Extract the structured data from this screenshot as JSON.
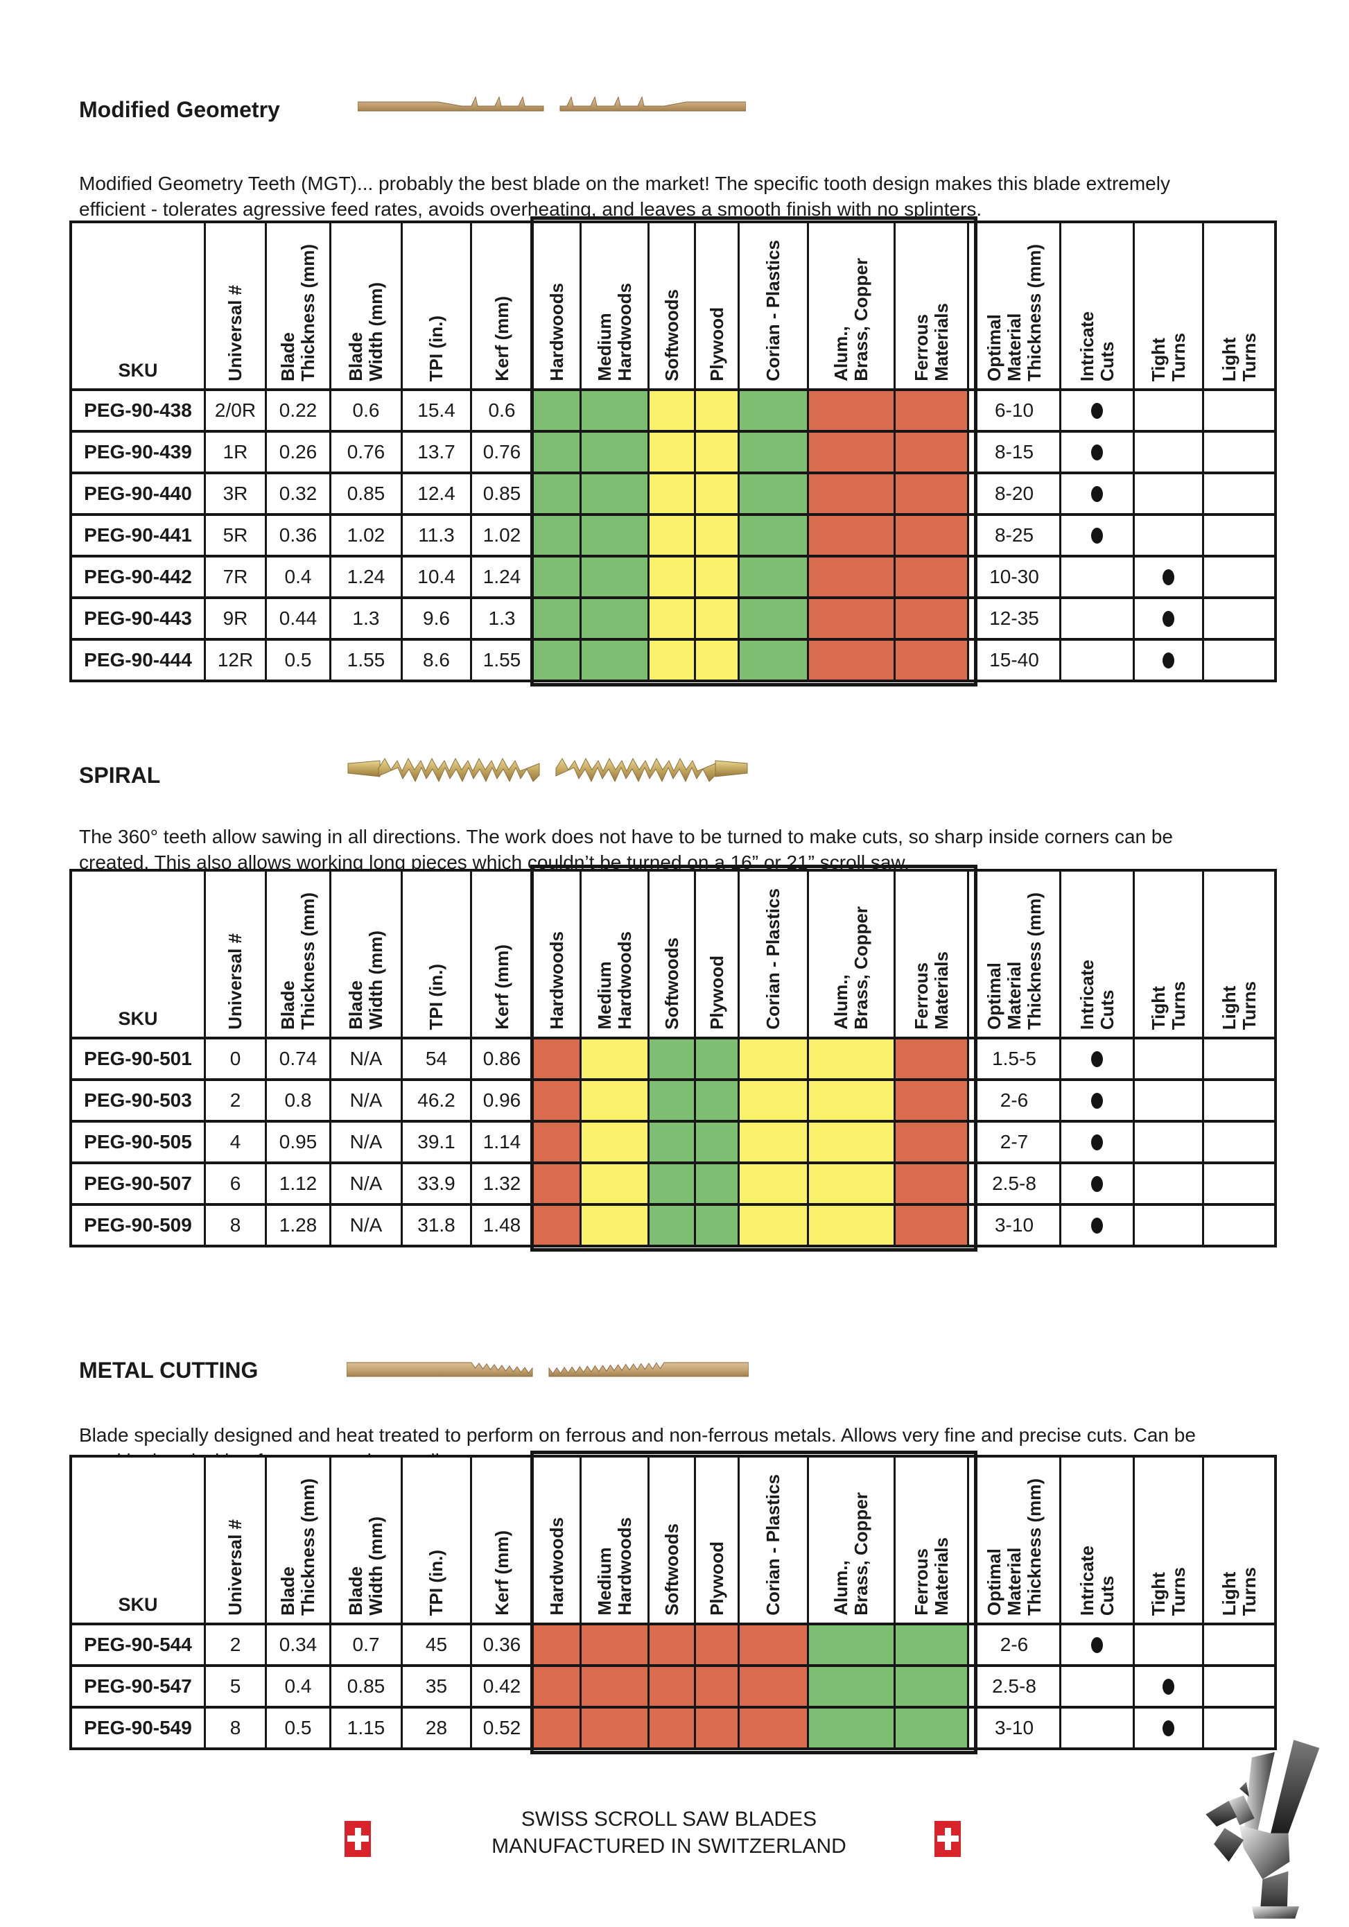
{
  "colors": {
    "suitable": "#7dbe73",
    "moderate": "#faf16a",
    "unsuitable": "#d96b4e",
    "border": "#161616",
    "flag_red": "#d8232a"
  },
  "table_columns": [
    {
      "key": "sku",
      "label": "SKU",
      "rotated": false
    },
    {
      "key": "universal",
      "label": "Universal #",
      "rotated": true
    },
    {
      "key": "thickness",
      "label": "Blade\nThickness (mm)",
      "rotated": true
    },
    {
      "key": "width",
      "label": "Blade\nWidth (mm)",
      "rotated": true
    },
    {
      "key": "tpi",
      "label": "TPI (in.)",
      "rotated": true
    },
    {
      "key": "kerf",
      "label": "Kerf (mm)",
      "rotated": true
    },
    {
      "key": "hardwoods",
      "label": "Hardwoods",
      "rotated": true,
      "material": true
    },
    {
      "key": "medium_hardwoods",
      "label": "Medium\nHardwoods",
      "rotated": true,
      "material": true
    },
    {
      "key": "softwoods",
      "label": "Softwoods",
      "rotated": true,
      "material": true
    },
    {
      "key": "plywood",
      "label": "Plywood",
      "rotated": true,
      "material": true
    },
    {
      "key": "corian_plastics",
      "label": "Corian - Plastics",
      "rotated": true,
      "material": true
    },
    {
      "key": "alum_brass_copper",
      "label": "Alum.,\nBrass, Copper",
      "rotated": true,
      "material": true
    },
    {
      "key": "ferrous",
      "label": "Ferrous\nMaterials",
      "rotated": true,
      "material": true
    },
    {
      "key": "optimal",
      "label": "Optimal\nMaterial\nThickness (mm)",
      "rotated": true
    },
    {
      "key": "intricate",
      "label": "Intricate\nCuts",
      "rotated": true,
      "dot": true
    },
    {
      "key": "tight",
      "label": "Tight\nTurns",
      "rotated": true,
      "dot": true
    },
    {
      "key": "light",
      "label": "Light\nTurns",
      "rotated": true,
      "dot": true
    }
  ],
  "sections": [
    {
      "title": "Modified Geometry",
      "blade_image": "modified-geometry-blade",
      "description_lines": [
        "Modified Geometry Teeth (MGT)... probably the best blade on the market! The specific tooth design makes this blade extremely",
        "efficient - tolerates agressive feed rates, avoids overheating, and leaves a smooth finish with no splinters."
      ],
      "materials": {
        "hardwoods": "suitable",
        "medium_hardwoods": "suitable",
        "softwoods": "moderate",
        "plywood": "moderate",
        "corian_plastics": "suitable",
        "alum_brass_copper": "unsuitable",
        "ferrous": "unsuitable"
      },
      "rows": [
        {
          "sku": "PEG-90-438",
          "universal": "2/0R",
          "thickness": "0.22",
          "width": "0.6",
          "tpi": "15.4",
          "kerf": "0.6",
          "optimal": "6-10",
          "dot": "intricate"
        },
        {
          "sku": "PEG-90-439",
          "universal": "1R",
          "thickness": "0.26",
          "width": "0.76",
          "tpi": "13.7",
          "kerf": "0.76",
          "optimal": "8-15",
          "dot": "intricate"
        },
        {
          "sku": "PEG-90-440",
          "universal": "3R",
          "thickness": "0.32",
          "width": "0.85",
          "tpi": "12.4",
          "kerf": "0.85",
          "optimal": "8-20",
          "dot": "intricate"
        },
        {
          "sku": "PEG-90-441",
          "universal": "5R",
          "thickness": "0.36",
          "width": "1.02",
          "tpi": "11.3",
          "kerf": "1.02",
          "optimal": "8-25",
          "dot": "intricate"
        },
        {
          "sku": "PEG-90-442",
          "universal": "7R",
          "thickness": "0.4",
          "width": "1.24",
          "tpi": "10.4",
          "kerf": "1.24",
          "optimal": "10-30",
          "dot": "tight"
        },
        {
          "sku": "PEG-90-443",
          "universal": "9R",
          "thickness": "0.44",
          "width": "1.3",
          "tpi": "9.6",
          "kerf": "1.3",
          "optimal": "12-35",
          "dot": "tight"
        },
        {
          "sku": "PEG-90-444",
          "universal": "12R",
          "thickness": "0.5",
          "width": "1.55",
          "tpi": "8.6",
          "kerf": "1.55",
          "optimal": "15-40",
          "dot": "tight"
        }
      ]
    },
    {
      "title": "SPIRAL",
      "blade_image": "spiral-blade",
      "description_lines": [
        "The 360° teeth allow sawing in all directions. The work does not have to be turned to make cuts, so sharp inside corners can be",
        "created. This also allows working long pieces which couldn’t be turned on a 16” or 21” scroll saw."
      ],
      "materials": {
        "hardwoods": "unsuitable",
        "medium_hardwoods": "moderate",
        "softwoods": "suitable",
        "plywood": "suitable",
        "corian_plastics": "moderate",
        "alum_brass_copper": "moderate",
        "ferrous": "unsuitable"
      },
      "rows": [
        {
          "sku": "PEG-90-501",
          "universal": "0",
          "thickness": "0.74",
          "width": "N/A",
          "tpi": "54",
          "kerf": "0.86",
          "optimal": "1.5-5",
          "dot": "intricate"
        },
        {
          "sku": "PEG-90-503",
          "universal": "2",
          "thickness": "0.8",
          "width": "N/A",
          "tpi": "46.2",
          "kerf": "0.96",
          "optimal": "2-6",
          "dot": "intricate"
        },
        {
          "sku": "PEG-90-505",
          "universal": "4",
          "thickness": "0.95",
          "width": "N/A",
          "tpi": "39.1",
          "kerf": "1.14",
          "optimal": "2-7",
          "dot": "intricate"
        },
        {
          "sku": "PEG-90-507",
          "universal": "6",
          "thickness": "1.12",
          "width": "N/A",
          "tpi": "33.9",
          "kerf": "1.32",
          "optimal": "2.5-8",
          "dot": "intricate"
        },
        {
          "sku": "PEG-90-509",
          "universal": "8",
          "thickness": "1.28",
          "width": "N/A",
          "tpi": "31.8",
          "kerf": "1.48",
          "optimal": "3-10",
          "dot": "intricate"
        }
      ]
    },
    {
      "title": "METAL CUTTING",
      "blade_image": "metal-cutting-blade",
      "description_lines": [
        "Blade specially designed and heat treated to perform on ferrous and non-ferrous metals. Allows very fine and precise cuts. Can be",
        "used by hand with a frame or on the scroll saw."
      ],
      "materials": {
        "hardwoods": "unsuitable",
        "medium_hardwoods": "unsuitable",
        "softwoods": "unsuitable",
        "plywood": "unsuitable",
        "corian_plastics": "unsuitable",
        "alum_brass_copper": "suitable",
        "ferrous": "suitable"
      },
      "rows": [
        {
          "sku": "PEG-90-544",
          "universal": "2",
          "thickness": "0.34",
          "width": "0.7",
          "tpi": "45",
          "kerf": "0.36",
          "optimal": "2-6",
          "dot": "intricate"
        },
        {
          "sku": "PEG-90-547",
          "universal": "5",
          "thickness": "0.4",
          "width": "0.85",
          "tpi": "35",
          "kerf": "0.42",
          "optimal": "2.5-8",
          "dot": "tight"
        },
        {
          "sku": "PEG-90-549",
          "universal": "8",
          "thickness": "0.5",
          "width": "1.15",
          "tpi": "28",
          "kerf": "0.52",
          "optimal": "3-10",
          "dot": "tight"
        }
      ]
    }
  ],
  "footer": {
    "line1": "SWISS SCROLL SAW BLADES",
    "line2": "MANUFACTURED IN SWITZERLAND"
  }
}
